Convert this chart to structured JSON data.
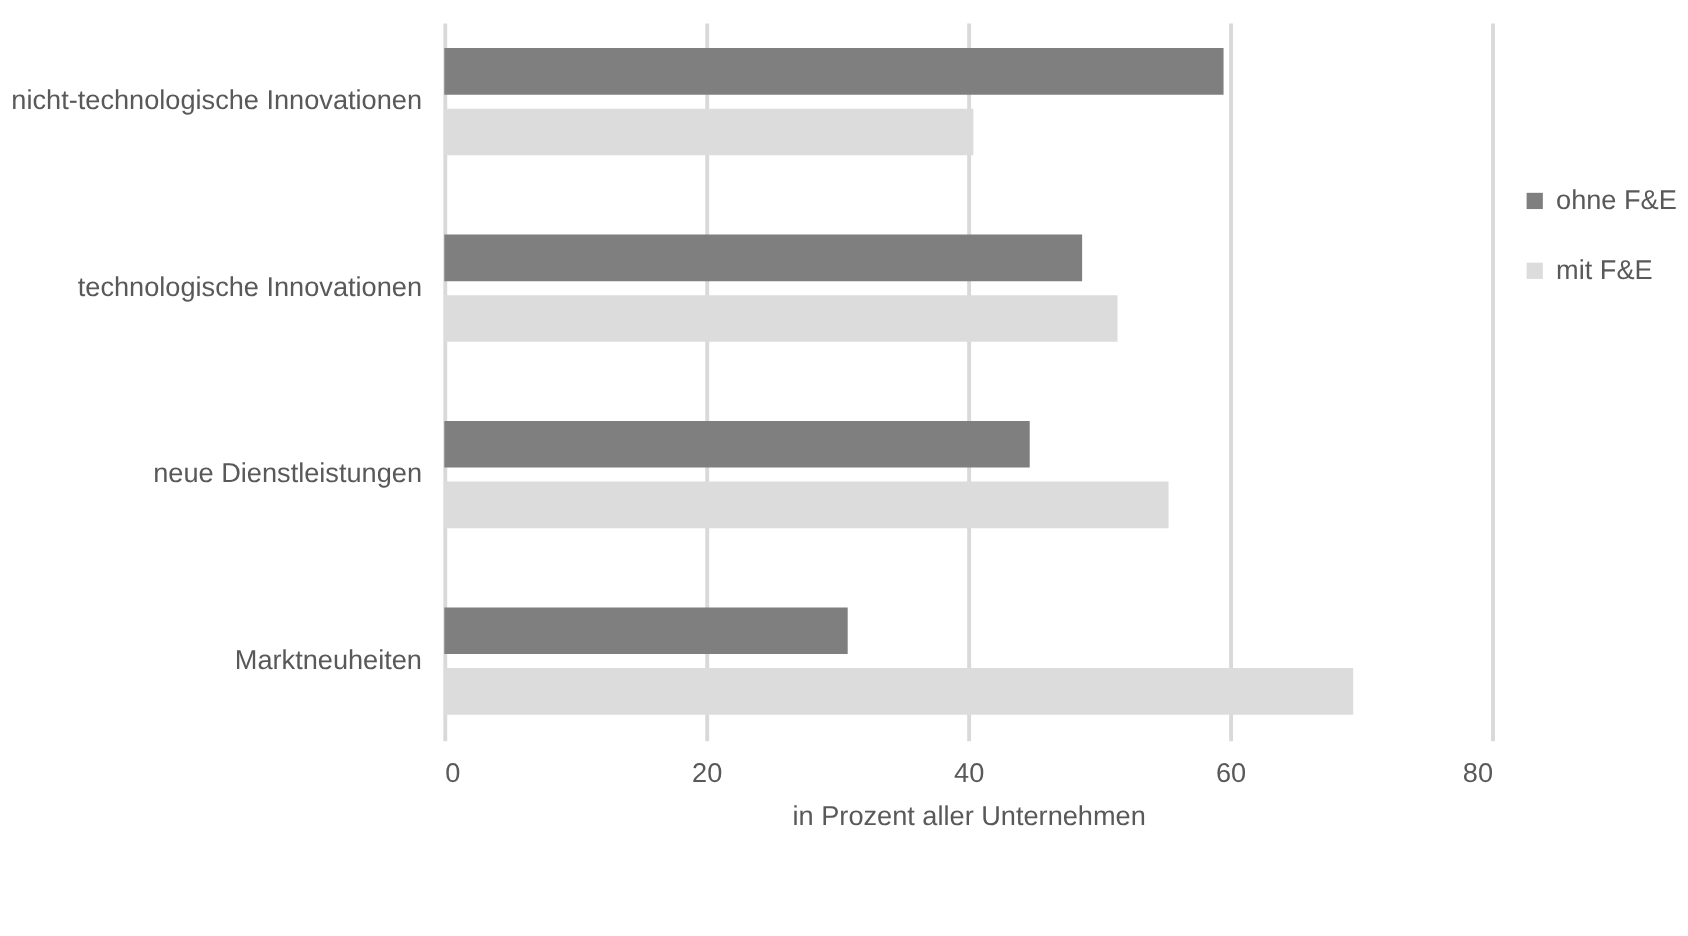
{
  "chart_data": {
    "type": "bar",
    "orientation": "horizontal",
    "xlabel": "in Prozent aller Unternehmen",
    "categories": [
      "nicht-technologische Innovationen",
      "technologische Innovationen",
      "neue Dienstleistungen",
      "Marktneuheiten"
    ],
    "series": [
      {
        "name": "ohne F&E",
        "color": "#7f7f7f",
        "values": [
          59.5,
          48.7,
          44.7,
          30.8
        ]
      },
      {
        "name": "mit F&E",
        "color": "#dcdcdc",
        "values": [
          40.4,
          51.4,
          55.3,
          69.4
        ]
      }
    ],
    "xlim": [
      0,
      80
    ],
    "xticks": [
      0,
      20,
      40,
      60,
      80
    ],
    "grid": "x",
    "legend": "right"
  }
}
